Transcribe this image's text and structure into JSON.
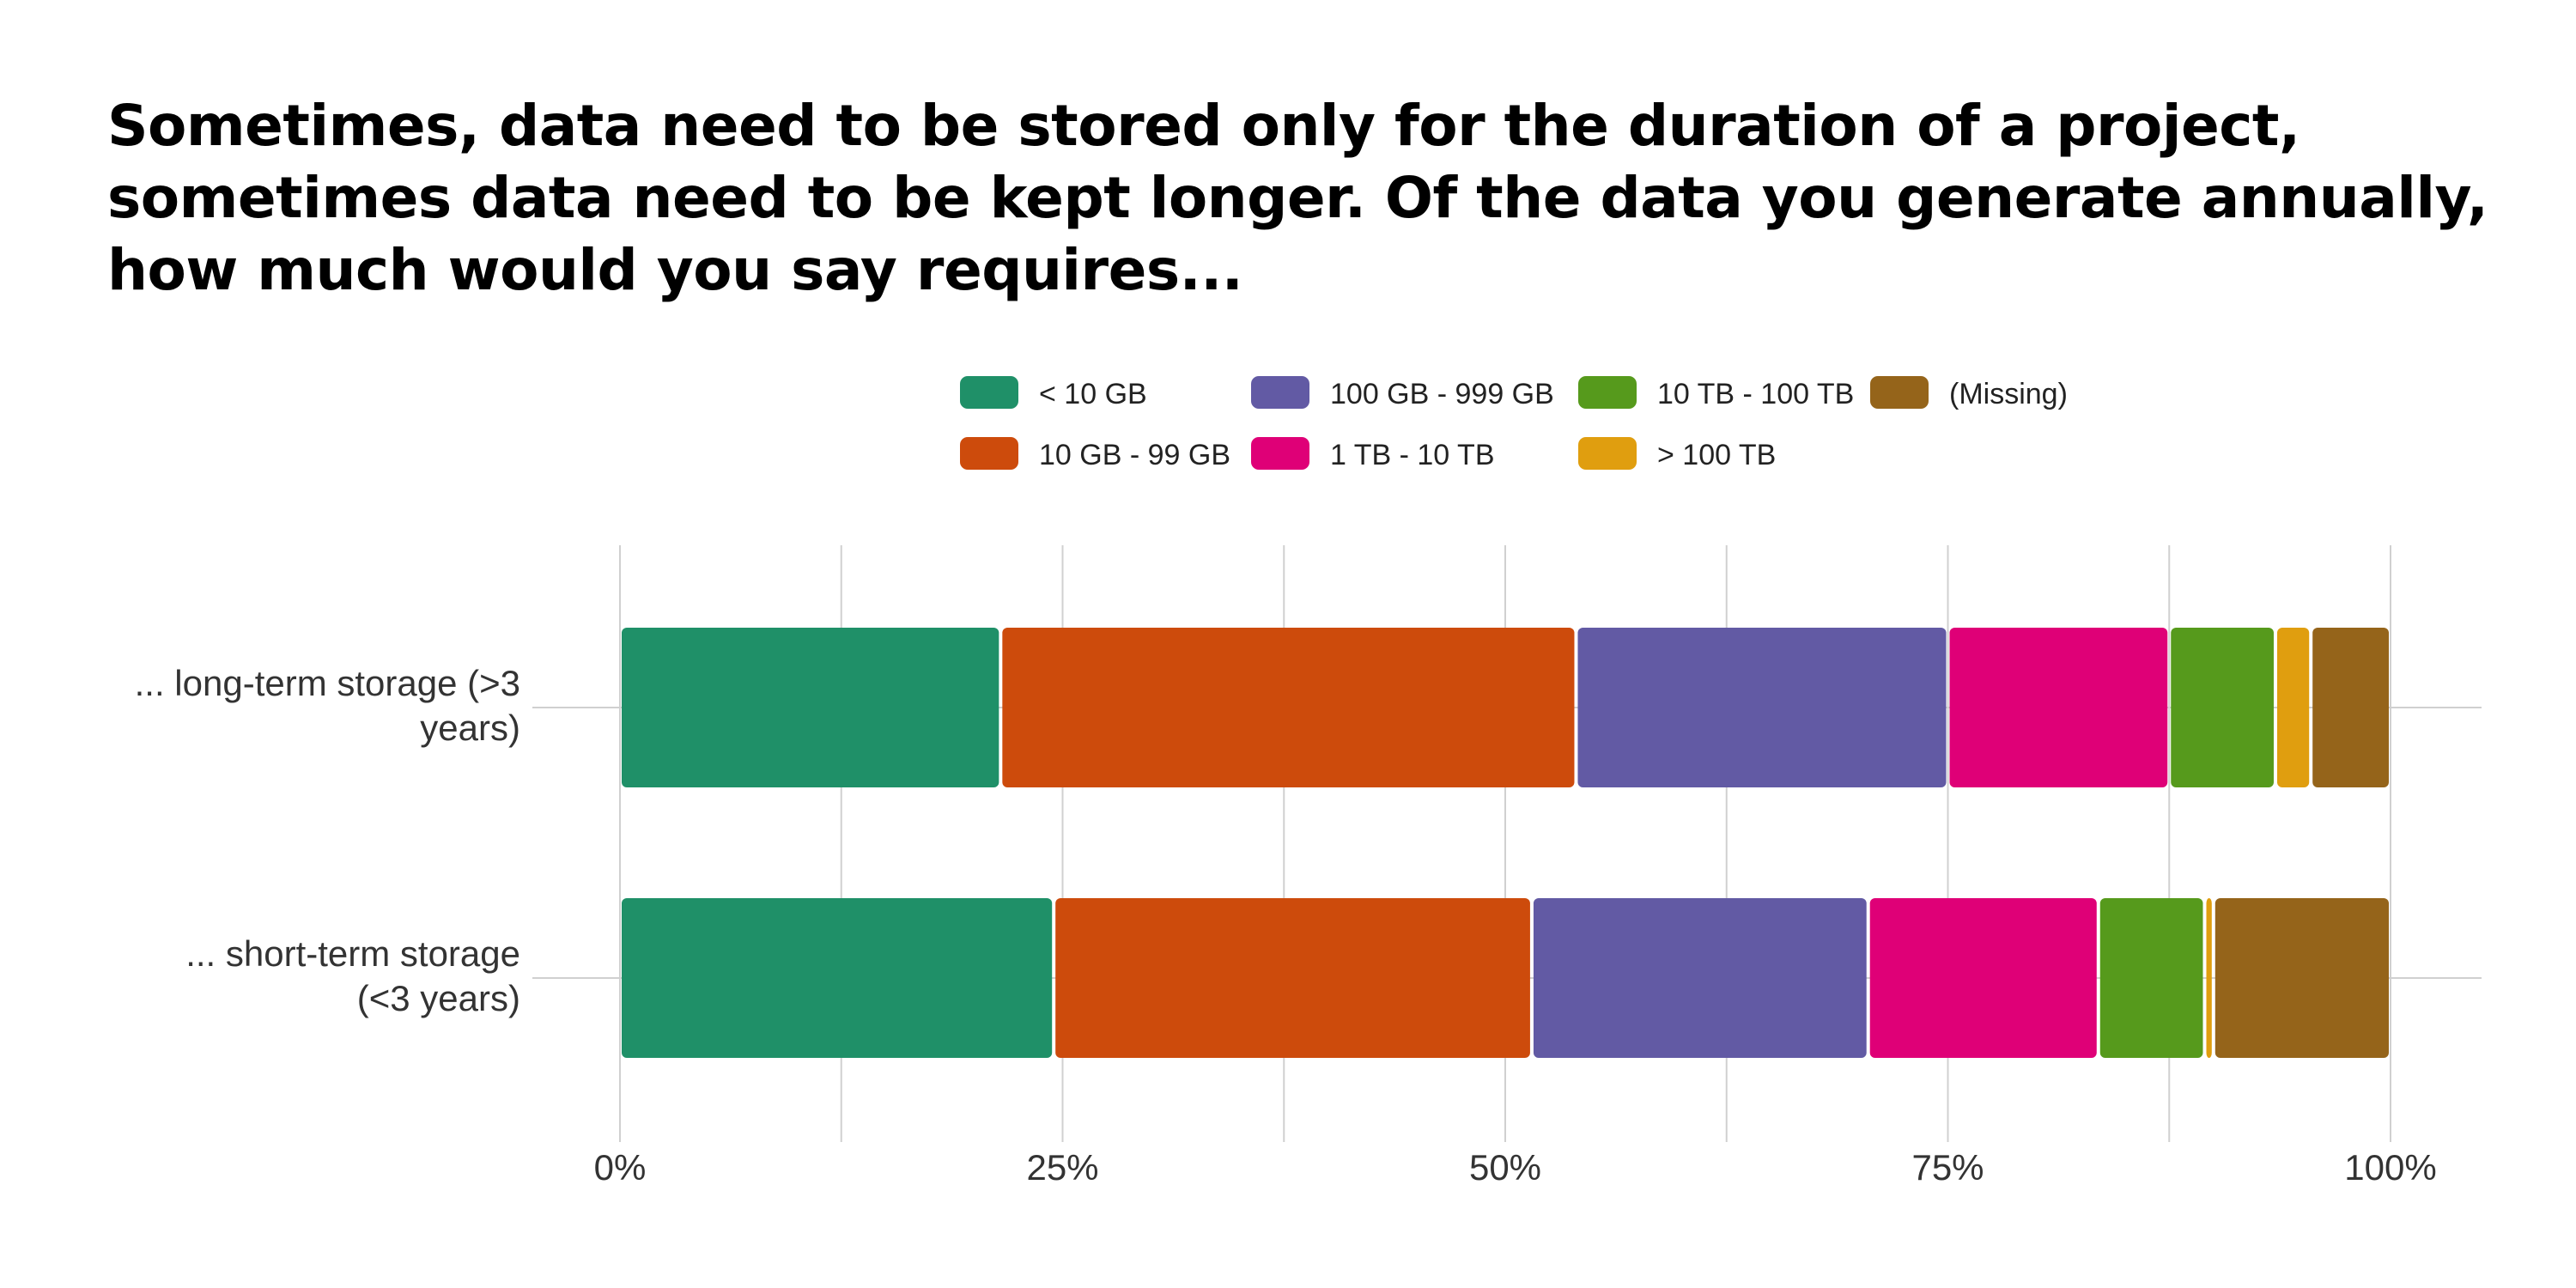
{
  "chart_data": {
    "type": "bar",
    "orientation": "horizontal",
    "stacked": "percent",
    "title": "Sometimes, data need to be stored only for the duration of a project, sometimes data need to be kept longer. Of the data you generate annually, how much would you say requires...",
    "categories": [
      "... long-term storage (>3 years)",
      "... short-term storage (<3 years)"
    ],
    "category_lines": [
      [
        "... long-term storage (>3",
        "years)"
      ],
      [
        "... short-term storage",
        "(<3 years)"
      ]
    ],
    "series": [
      {
        "name": "< 10 GB",
        "color": "#1f9068",
        "values": [
          21.5,
          24.5
        ]
      },
      {
        "name": "10 GB - 99 GB",
        "color": "#cd4b0c",
        "values": [
          32.5,
          27.0
        ]
      },
      {
        "name": "100 GB - 999 GB",
        "color": "#625aa4",
        "values": [
          21.0,
          19.0
        ]
      },
      {
        "name": "1 TB - 10 TB",
        "color": "#df0077",
        "values": [
          12.5,
          13.0
        ]
      },
      {
        "name": "10 TB - 100 TB",
        "color": "#569a1c",
        "values": [
          6.0,
          6.0
        ]
      },
      {
        "name": "> 100 TB",
        "color": "#e09e0f",
        "values": [
          2.0,
          0.5
        ]
      },
      {
        "name": "(Missing)",
        "color": "#95641a",
        "values": [
          4.5,
          10.0
        ]
      }
    ],
    "x_ticks": [
      "0%",
      "25%",
      "50%",
      "75%",
      "100%"
    ],
    "xlim": [
      0,
      100
    ],
    "grid": true,
    "legend_position": "top"
  }
}
